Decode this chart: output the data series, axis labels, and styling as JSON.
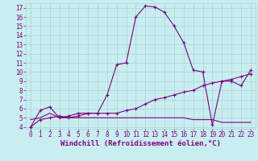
{
  "xlabel": "Windchill (Refroidissement éolien,°C)",
  "bg_color": "#c8eef0",
  "line_color": "#800080",
  "grid_color": "#a8d4d8",
  "xlim": [
    -0.5,
    23.5
  ],
  "ylim": [
    3.8,
    17.5
  ],
  "xticks": [
    0,
    1,
    2,
    3,
    4,
    5,
    6,
    7,
    8,
    9,
    10,
    11,
    12,
    13,
    14,
    15,
    16,
    17,
    18,
    19,
    20,
    21,
    22,
    23
  ],
  "yticks": [
    4,
    5,
    6,
    7,
    8,
    9,
    10,
    11,
    12,
    13,
    14,
    15,
    16,
    17
  ],
  "line1_x": [
    0,
    1,
    2,
    3,
    4,
    5,
    6,
    7,
    8,
    9,
    10,
    11,
    12,
    13,
    14,
    15,
    16,
    17,
    18,
    19,
    20,
    21,
    22,
    23
  ],
  "line1_y": [
    4.0,
    5.8,
    6.2,
    5.0,
    5.2,
    5.5,
    5.5,
    5.5,
    7.5,
    10.8,
    11.0,
    16.0,
    17.2,
    17.1,
    16.5,
    15.0,
    13.2,
    10.2,
    10.0,
    4.2,
    9.0,
    9.0,
    8.5,
    10.2
  ],
  "line2_x": [
    0,
    1,
    2,
    3,
    4,
    5,
    6,
    7,
    8,
    9,
    10,
    11,
    12,
    13,
    14,
    15,
    16,
    17,
    18,
    19,
    20,
    21,
    22,
    23
  ],
  "line2_y": [
    4.0,
    4.8,
    5.0,
    5.2,
    5.0,
    5.2,
    5.5,
    5.5,
    5.5,
    5.5,
    5.8,
    6.0,
    6.5,
    7.0,
    7.2,
    7.5,
    7.8,
    8.0,
    8.5,
    8.8,
    9.0,
    9.2,
    9.5,
    9.8
  ],
  "line3_x": [
    0,
    1,
    2,
    3,
    4,
    5,
    6,
    7,
    8,
    9,
    10,
    11,
    12,
    13,
    14,
    15,
    16,
    17,
    18,
    19,
    20,
    21,
    22,
    23
  ],
  "line3_y": [
    4.8,
    5.0,
    5.5,
    5.0,
    5.0,
    5.0,
    5.0,
    5.0,
    5.0,
    5.0,
    5.0,
    5.0,
    5.0,
    5.0,
    5.0,
    5.0,
    5.0,
    4.8,
    4.8,
    4.8,
    4.5,
    4.5,
    4.5,
    4.5
  ],
  "tick_fontsize": 5.5,
  "xlabel_fontsize": 6.5
}
